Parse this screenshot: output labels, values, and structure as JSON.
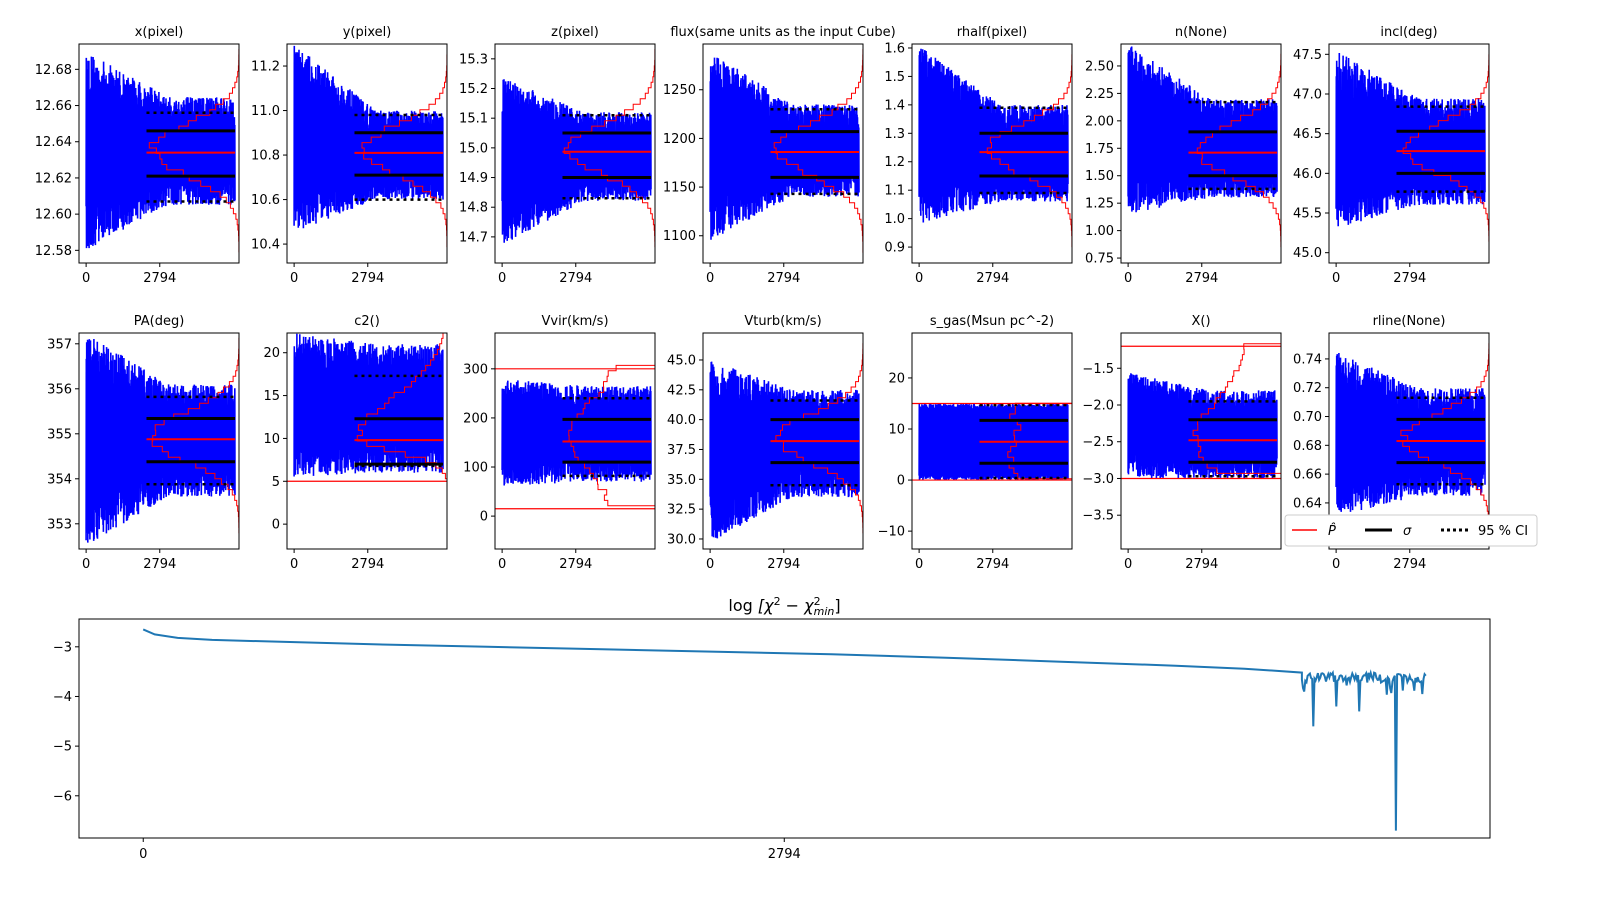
{
  "chart_data": [
    {
      "type": "line",
      "title": "x(pixel)",
      "xticks": [
        "0",
        "2794"
      ],
      "ylim": [
        12.573,
        12.694
      ],
      "yticks": [
        "12.58",
        "12.60",
        "12.62",
        "12.64",
        "12.66",
        "12.68"
      ],
      "ytick_values": [
        12.58,
        12.6,
        12.62,
        12.64,
        12.66,
        12.68
      ],
      "n_iter": 5650,
      "trace_start": [
        12.58,
        12.69
      ],
      "trace_end": [
        12.605,
        12.665
      ],
      "mean": 12.634,
      "sigma": [
        12.621,
        12.646
      ],
      "ci95": [
        12.607,
        12.656
      ],
      "prior": null,
      "hist_shape": "gaussian"
    },
    {
      "type": "line",
      "title": "y(pixel)",
      "xticks": [
        "0",
        "2794"
      ],
      "ylim": [
        10.315,
        11.299
      ],
      "yticks": [
        "10.4",
        "10.6",
        "10.8",
        "11.0",
        "11.2"
      ],
      "ytick_values": [
        10.4,
        10.6,
        10.8,
        11.0,
        11.2
      ],
      "n_iter": 5650,
      "trace_start": [
        10.45,
        11.3
      ],
      "trace_end": [
        10.6,
        11.0
      ],
      "mean": 10.81,
      "sigma": [
        10.71,
        10.9
      ],
      "ci95": [
        10.6,
        10.98
      ],
      "prior": null,
      "hist_shape": "gaussian"
    },
    {
      "type": "line",
      "title": "z(pixel)",
      "xticks": [
        "0",
        "2794"
      ],
      "ylim": [
        14.612,
        15.35
      ],
      "yticks": [
        "14.7",
        "14.8",
        "14.9",
        "15.0",
        "15.1",
        "15.2",
        "15.3"
      ],
      "ytick_values": [
        14.7,
        14.8,
        14.9,
        15.0,
        15.1,
        15.2,
        15.3
      ],
      "n_iter": 5650,
      "trace_start": [
        14.67,
        15.24
      ],
      "trace_end": [
        14.82,
        15.12
      ],
      "mean": 14.987,
      "sigma": [
        14.9,
        15.05
      ],
      "ci95": [
        14.83,
        15.11
      ],
      "prior": null,
      "hist_shape": "gaussian"
    },
    {
      "type": "line",
      "title": "flux(same units as the input Cube)",
      "xticks": [
        "0",
        "2794"
      ],
      "ylim": [
        1072,
        1297
      ],
      "yticks": [
        "1100",
        "1150",
        "1200",
        "1250"
      ],
      "ytick_values": [
        1100,
        1150,
        1200,
        1250
      ],
      "n_iter": 5650,
      "trace_start": [
        1095,
        1290
      ],
      "trace_end": [
        1140,
        1235
      ],
      "mean": 1186,
      "sigma": [
        1160,
        1207
      ],
      "ci95": [
        1143,
        1230
      ],
      "prior": null,
      "hist_shape": "gaussian"
    },
    {
      "type": "line",
      "title": "rhalf(pixel)",
      "xticks": [
        "0",
        "2794"
      ],
      "ylim": [
        0.844,
        1.614
      ],
      "yticks": [
        "0.9",
        "1.0",
        "1.1",
        "1.2",
        "1.3",
        "1.4",
        "1.5",
        "1.6"
      ],
      "ytick_values": [
        0.9,
        1.0,
        1.1,
        1.2,
        1.3,
        1.4,
        1.5,
        1.6
      ],
      "n_iter": 5650,
      "trace_start": [
        0.98,
        1.61
      ],
      "trace_end": [
        1.06,
        1.4
      ],
      "mean": 1.234,
      "sigma": [
        1.15,
        1.3
      ],
      "ci95": [
        1.09,
        1.39
      ],
      "prior": null,
      "hist_shape": "gaussian"
    },
    {
      "type": "line",
      "title": "n(None)",
      "xticks": [
        "0",
        "2794"
      ],
      "ylim": [
        0.705,
        2.7
      ],
      "yticks": [
        "0.75",
        "1.00",
        "1.25",
        "1.50",
        "1.75",
        "2.00",
        "2.25",
        "2.50"
      ],
      "ytick_values": [
        0.75,
        1.0,
        1.25,
        1.5,
        1.75,
        2.0,
        2.25,
        2.5
      ],
      "n_iter": 5650,
      "trace_start": [
        1.15,
        2.7
      ],
      "trace_end": [
        1.3,
        2.2
      ],
      "mean": 1.71,
      "sigma": [
        1.5,
        1.9
      ],
      "ci95": [
        1.38,
        2.17
      ],
      "prior": null,
      "hist_shape": "gaussian"
    },
    {
      "type": "line",
      "title": "incl(deg)",
      "xticks": [
        "0",
        "2794"
      ],
      "ylim": [
        44.87,
        47.63
      ],
      "yticks": [
        "45.0",
        "45.5",
        "46.0",
        "46.5",
        "47.0",
        "47.5"
      ],
      "ytick_values": [
        45.0,
        45.5,
        46.0,
        46.5,
        47.0,
        47.5
      ],
      "n_iter": 5650,
      "trace_start": [
        45.3,
        47.55
      ],
      "trace_end": [
        45.6,
        46.95
      ],
      "mean": 46.28,
      "sigma": [
        46.0,
        46.53
      ],
      "ci95": [
        45.77,
        46.84
      ],
      "prior": null,
      "hist_shape": "gaussian"
    },
    {
      "type": "line",
      "title": "PA(deg)",
      "xticks": [
        "0",
        "2794"
      ],
      "ylim": [
        352.44,
        357.24
      ],
      "yticks": [
        "353",
        "354",
        "355",
        "356",
        "357"
      ],
      "ytick_values": [
        353,
        354,
        355,
        356,
        357
      ],
      "n_iter": 5650,
      "trace_start": [
        352.5,
        357.24
      ],
      "trace_end": [
        353.6,
        356.1
      ],
      "mean": 354.88,
      "sigma": [
        354.38,
        355.34
      ],
      "ci95": [
        353.88,
        355.82
      ],
      "prior": null,
      "hist_shape": "gaussian"
    },
    {
      "type": "line",
      "title": "c2()",
      "xticks": [
        "0",
        "2794"
      ],
      "ylim": [
        -2.9,
        22.3
      ],
      "yticks": [
        "0",
        "5",
        "10",
        "15",
        "20"
      ],
      "ytick_values": [
        0,
        5,
        10,
        15,
        20
      ],
      "n_iter": 5650,
      "trace_start": [
        5.5,
        22.3
      ],
      "trace_end": [
        6.0,
        21.0
      ],
      "mean": 9.8,
      "sigma": [
        7.0,
        12.3
      ],
      "ci95": [
        6.8,
        17.3
      ],
      "prior": [
        5,
        null
      ],
      "hist_shape": "skew"
    },
    {
      "type": "line",
      "title": "Vvir(km/s)",
      "xticks": [
        "0",
        "2794"
      ],
      "ylim": [
        -67,
        373
      ],
      "yticks": [
        "0",
        "100",
        "200",
        "300"
      ],
      "ytick_values": [
        0,
        100,
        200,
        300
      ],
      "n_iter": 5650,
      "trace_start": [
        60,
        280
      ],
      "trace_end": [
        70,
        265
      ],
      "mean": 152,
      "sigma": [
        110,
        197
      ],
      "ci95": [
        82,
        240
      ],
      "prior": [
        15,
        300
      ],
      "hist_shape": "flatgauss"
    },
    {
      "type": "line",
      "title": "Vturb(km/s)",
      "xticks": [
        "0",
        "2794"
      ],
      "ylim": [
        29.16,
        47.26
      ],
      "yticks": [
        "30.0",
        "32.5",
        "35.0",
        "37.5",
        "40.0",
        "42.5",
        "45.0"
      ],
      "ytick_values": [
        30,
        32.5,
        35,
        37.5,
        40,
        42.5,
        45
      ],
      "n_iter": 5650,
      "trace_start": [
        29.7,
        45.0
      ],
      "trace_end": [
        33.5,
        42.5
      ],
      "mean": 38.2,
      "sigma": [
        36.4,
        40.0
      ],
      "ci95": [
        34.5,
        41.6
      ],
      "prior": null,
      "hist_shape": "gaussian"
    },
    {
      "type": "line",
      "title": "s_gas(Msun pc^-2)",
      "xticks": [
        "0",
        "2794"
      ],
      "ylim": [
        -13.5,
        28.8
      ],
      "yticks": [
        "-10",
        "0",
        "10",
        "20"
      ],
      "ytick_values": [
        -10,
        0,
        10,
        20
      ],
      "n_iter": 5650,
      "trace_start": [
        0,
        15
      ],
      "trace_end": [
        0,
        15
      ],
      "mean": 7.5,
      "sigma": [
        3.3,
        11.7
      ],
      "ci95": [
        0.4,
        14.7
      ],
      "prior": [
        0,
        15
      ],
      "hist_shape": "flat"
    },
    {
      "type": "line",
      "title": "X()",
      "xticks": [
        "0",
        "2794"
      ],
      "ylim": [
        -3.96,
        -1.02
      ],
      "yticks": [
        "-3.5",
        "-3.0",
        "-2.5",
        "-2.0",
        "-1.5"
      ],
      "ytick_values": [
        -3.5,
        -3.0,
        -2.5,
        -2.0,
        -1.5
      ],
      "n_iter": 5650,
      "trace_start": [
        -3.0,
        -1.55
      ],
      "trace_end": [
        -3.0,
        -1.8
      ],
      "mean": -2.48,
      "sigma": [
        -2.78,
        -2.2
      ],
      "ci95": [
        -2.97,
        -1.95
      ],
      "prior": [
        -3.0,
        -1.2
      ],
      "hist_shape": "flatgauss"
    },
    {
      "type": "line",
      "title": "rline(None)",
      "xticks": [
        "0",
        "2794"
      ],
      "ylim": [
        0.608,
        0.758
      ],
      "yticks": [
        "0.64",
        "0.66",
        "0.68",
        "0.70",
        "0.72",
        "0.74"
      ],
      "ytick_values": [
        0.64,
        0.66,
        0.68,
        0.7,
        0.72,
        0.74
      ],
      "n_iter": 5650,
      "trace_start": [
        0.63,
        0.745
      ],
      "trace_end": [
        0.645,
        0.72
      ],
      "mean": 0.683,
      "sigma": [
        0.668,
        0.698
      ],
      "ci95": [
        0.653,
        0.713
      ],
      "prior": null,
      "hist_shape": "gaussian"
    },
    {
      "type": "line",
      "title_parts": [
        "log",
        "[χ",
        "2",
        "−",
        "χ",
        "2",
        "min",
        "]"
      ],
      "xticks": [
        "0",
        "2794"
      ],
      "xtick_values": [
        0,
        2794
      ],
      "xlim": [
        -280,
        5870
      ],
      "ylim": [
        -6.85,
        -2.44
      ],
      "yticks": [
        "-6",
        "-5",
        "-4",
        "-3"
      ],
      "ytick_values": [
        -6,
        -5,
        -4,
        -3
      ],
      "series": [
        {
          "name": "log chi2",
          "color": "#1f77b4",
          "points": [
            [
              0,
              -2.65
            ],
            [
              50,
              -2.75
            ],
            [
              150,
              -2.82
            ],
            [
              300,
              -2.86
            ],
            [
              600,
              -2.9
            ],
            [
              1000,
              -2.95
            ],
            [
              1500,
              -3.0
            ],
            [
              2000,
              -3.05
            ],
            [
              2500,
              -3.1
            ],
            [
              3000,
              -3.15
            ],
            [
              3500,
              -3.22
            ],
            [
              4000,
              -3.3
            ],
            [
              4500,
              -3.38
            ],
            [
              4800,
              -3.44
            ],
            [
              5050,
              -3.52
            ]
          ],
          "noisy_tail": {
            "start": 5050,
            "end": 5590,
            "level": -3.62,
            "spikes": [
              [
                5100,
                -4.6
              ],
              [
                5200,
                -4.2
              ],
              [
                5300,
                -4.3
              ],
              [
                5460,
                -6.7
              ]
            ]
          }
        }
      ]
    }
  ],
  "legend": {
    "position": "lower-right",
    "entries": [
      {
        "label": "P̂",
        "color": "#ff0000",
        "style": "solid"
      },
      {
        "label": "σ",
        "color": "#000000",
        "style": "solid"
      },
      {
        "label": "95 % CI",
        "color": "#000000",
        "style": "dotted"
      }
    ]
  },
  "colors": {
    "trace": "#0000ff",
    "estimate": "#ff0000",
    "sigma": "#000000",
    "ci": "#000000",
    "chi2": "#1f77b4"
  }
}
